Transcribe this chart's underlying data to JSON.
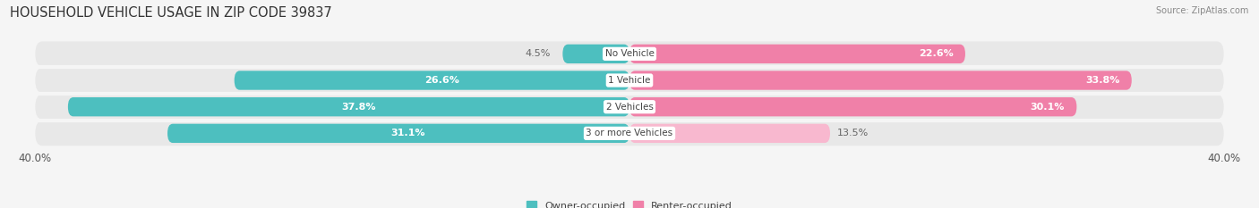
{
  "title": "HOUSEHOLD VEHICLE USAGE IN ZIP CODE 39837",
  "source": "Source: ZipAtlas.com",
  "categories": [
    "No Vehicle",
    "1 Vehicle",
    "2 Vehicles",
    "3 or more Vehicles"
  ],
  "owner_values": [
    4.5,
    26.6,
    37.8,
    31.1
  ],
  "renter_values": [
    22.6,
    33.8,
    30.1,
    13.5
  ],
  "owner_color": "#4dbfbf",
  "renter_color": "#f080a8",
  "renter_color_light": "#f8b8cf",
  "owner_label": "Owner-occupied",
  "renter_label": "Renter-occupied",
  "xlim": 40.0,
  "background_color": "#f5f5f5",
  "track_color": "#e8e8e8",
  "title_fontsize": 10.5,
  "label_fontsize": 8.0,
  "tick_fontsize": 8.5,
  "bar_height": 0.72
}
